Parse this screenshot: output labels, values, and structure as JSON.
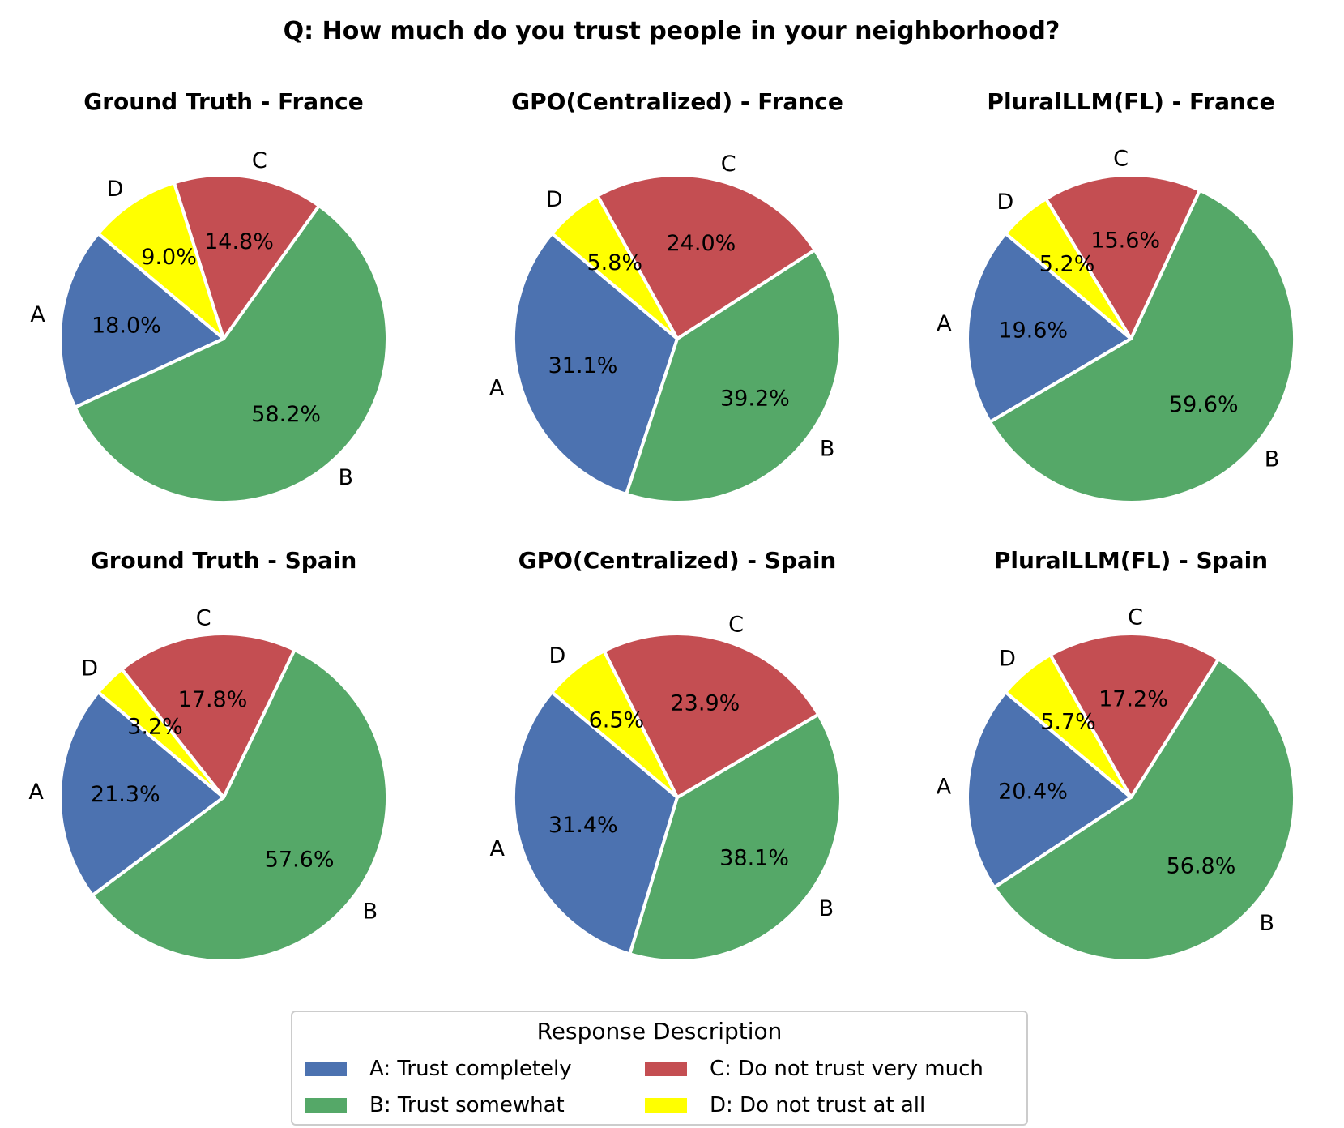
{
  "chart_data": {
    "type": "pie",
    "title": "Q: How much do you trust people in your neighborhood?",
    "categories": [
      "A",
      "B",
      "C",
      "D"
    ],
    "colors": {
      "A": "#4c72b0",
      "B": "#55a868",
      "C": "#c44e52",
      "D": "#ffff00"
    },
    "charts": [
      {
        "title": "Ground Truth - France",
        "values": {
          "A": 18.0,
          "B": 58.2,
          "C": 14.8,
          "D": 9.0
        },
        "labels": {
          "A": "18.0%",
          "B": "58.2%",
          "C": "14.8%",
          "D": "9.0%"
        }
      },
      {
        "title": "GPO(Centralized) - France",
        "values": {
          "A": 31.1,
          "B": 39.2,
          "C": 24.0,
          "D": 5.8
        },
        "labels": {
          "A": "31.1%",
          "B": "39.2%",
          "C": "24.0%",
          "D": "5.8%"
        }
      },
      {
        "title": "PluralLLM(FL)  - France",
        "values": {
          "A": 19.6,
          "B": 59.6,
          "C": 15.6,
          "D": 5.2
        },
        "labels": {
          "A": "19.6%",
          "B": "59.6%",
          "C": "15.6%",
          "D": "5.2%"
        }
      },
      {
        "title": "Ground Truth - Spain",
        "values": {
          "A": 21.3,
          "B": 57.6,
          "C": 17.8,
          "D": 3.2
        },
        "labels": {
          "A": "21.3%",
          "B": "57.6%",
          "C": "17.8%",
          "D": "3.2%"
        }
      },
      {
        "title": "GPO(Centralized) - Spain",
        "values": {
          "A": 31.4,
          "B": 38.1,
          "C": 23.9,
          "D": 6.5
        },
        "labels": {
          "A": "31.4%",
          "B": "38.1%",
          "C": "23.9%",
          "D": "6.5%"
        }
      },
      {
        "title": "PluralLLM(FL)  - Spain",
        "values": {
          "A": 20.4,
          "B": 56.8,
          "C": 17.2,
          "D": 5.7
        },
        "labels": {
          "A": "20.4%",
          "B": "56.8%",
          "C": "17.2%",
          "D": "5.7%"
        }
      }
    ],
    "legend": {
      "title": "Response Description",
      "placement": "bottom-center",
      "entries": [
        {
          "key": "A",
          "label": "A: Trust completely"
        },
        {
          "key": "C",
          "label": "C: Do not trust very much"
        },
        {
          "key": "B",
          "label": "B: Trust somewhat"
        },
        {
          "key": "D",
          "label": "D: Do not trust at all"
        }
      ]
    }
  }
}
